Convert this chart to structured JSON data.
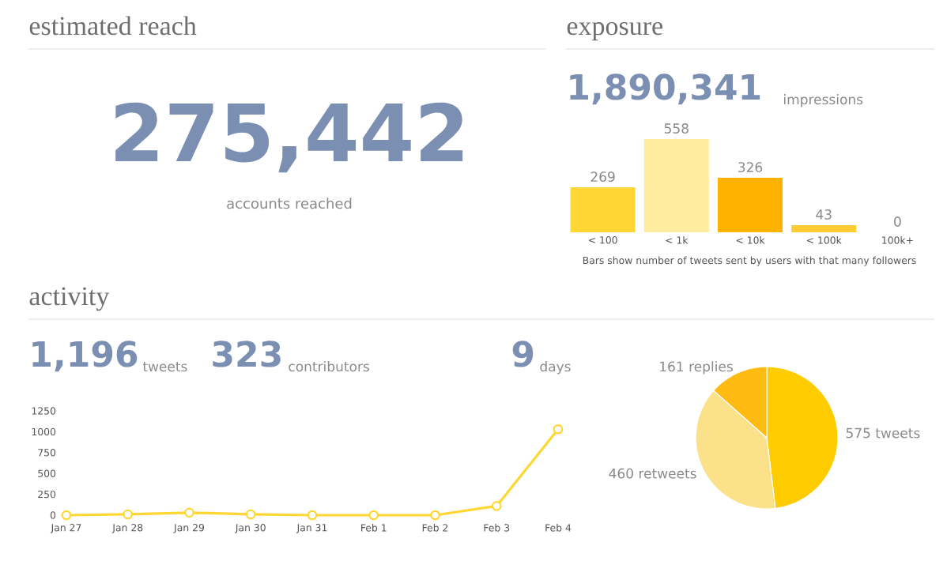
{
  "chart_data": [
    {
      "type": "other",
      "title": "estimated reach",
      "annotations": [
        "275,442",
        "accounts reached"
      ]
    },
    {
      "type": "bar",
      "title": "exposure",
      "annotations": [
        "1,890,341",
        "impressions",
        "Bars show number of tweets sent by users with that many followers"
      ],
      "categories": [
        "< 100",
        "< 1k",
        "< 10k",
        "< 100k",
        "100k+"
      ],
      "values": [
        269,
        558,
        326,
        43,
        0
      ],
      "colors": [
        "#ffd633",
        "#ffec9e",
        "#ffb300",
        "#ffcc33",
        "#ffcc33"
      ],
      "data_labels": true
    },
    {
      "type": "other",
      "title": "activity",
      "annotations": [
        "1,196",
        "tweets",
        "323",
        "contributors",
        "9",
        "days"
      ]
    },
    {
      "type": "line",
      "categories": [
        "Jan 27",
        "Jan 28",
        "Jan 29",
        "Jan 30",
        "Jan 31",
        "Feb 1",
        "Feb 2",
        "Feb 3",
        "Feb 4"
      ],
      "values": [
        0,
        10,
        30,
        10,
        0,
        0,
        0,
        110,
        1030
      ],
      "color": "#ffd633",
      "marker": "circle",
      "ylim": [
        0,
        1250
      ],
      "yticks": [
        0,
        250,
        500,
        750,
        1000,
        1250
      ]
    },
    {
      "type": "pie",
      "categories": [
        "tweets",
        "retweets",
        "replies"
      ],
      "values": [
        575,
        460,
        161
      ],
      "colors": [
        "#ffcc00",
        "#fbe28a",
        "#ffbb11"
      ],
      "data_labels": true
    }
  ]
}
